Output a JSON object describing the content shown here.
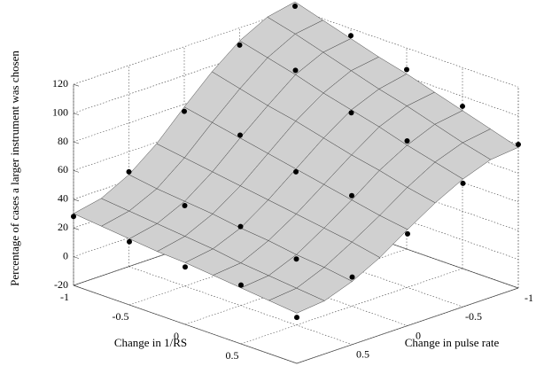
{
  "chart_data": {
    "type": "surface",
    "xlabel": "Change in 1/RS",
    "ylabel": "Change in pulse rate",
    "zlabel": "Percentage of cases a larger instrument was chosen",
    "xlim": [
      -1,
      1
    ],
    "ylim": [
      -1,
      1
    ],
    "zlim": [
      -20,
      120
    ],
    "xticks": [
      -1,
      -0.5,
      0,
      0.5,
      1
    ],
    "yticks": [
      -1,
      -0.5,
      0,
      0.5,
      1
    ],
    "zticks": [
      -20,
      0,
      20,
      40,
      60,
      80,
      100,
      120
    ],
    "grid": true,
    "surface_color": "#d0d0d0",
    "mesh_color": "#444444",
    "point_color": "#000000",
    "surface": {
      "x": [
        -1,
        -0.75,
        -0.5,
        -0.25,
        0,
        0.25,
        0.5,
        0.75,
        1
      ],
      "y": [
        -1,
        -0.75,
        -0.5,
        -0.25,
        0,
        0.25,
        0.5,
        0.75,
        1
      ],
      "z": [
        [
          125,
          119,
          113,
          107,
          102,
          96,
          90,
          84,
          78
        ],
        [
          121,
          116,
          110,
          104,
          98,
          93,
          87,
          81,
          76
        ],
        [
          111,
          106,
          101,
          95,
          90,
          85,
          79,
          74,
          69
        ],
        [
          96,
          91,
          86,
          82,
          77,
          72,
          68,
          63,
          59
        ],
        [
          78,
          74,
          70,
          66,
          62,
          58,
          54,
          50,
          47
        ],
        [
          59,
          56,
          53,
          50,
          47,
          44,
          41,
          38,
          34
        ],
        [
          44,
          41,
          39,
          37,
          34,
          32,
          29,
          27,
          24
        ],
        [
          34,
          32,
          30,
          28,
          26,
          23,
          21,
          19,
          17
        ],
        [
          30,
          28,
          26,
          24,
          23,
          21,
          19,
          17,
          15
        ]
      ]
    },
    "points": {
      "x": [
        -1,
        -0.5,
        0,
        0.5,
        1,
        -1,
        -0.5,
        0,
        0.5,
        1,
        -1,
        -0.5,
        0,
        0.5,
        1,
        -1,
        -0.5,
        0,
        0.5,
        1,
        -1,
        -0.5,
        0,
        0.5,
        1
      ],
      "y": [
        -1,
        -1,
        -1,
        -1,
        -1,
        -0.5,
        -0.5,
        -0.5,
        -0.5,
        -0.5,
        0,
        0,
        0,
        0,
        0,
        0.5,
        0.5,
        0.5,
        0.5,
        0.5,
        1,
        1,
        1,
        1,
        1
      ],
      "z": [
        122,
        115,
        105,
        93,
        80,
        108,
        104,
        88,
        82,
        66,
        75,
        72,
        60,
        57,
        44,
        46,
        36,
        35,
        26,
        27,
        28,
        24,
        20,
        21,
        12
      ]
    }
  }
}
